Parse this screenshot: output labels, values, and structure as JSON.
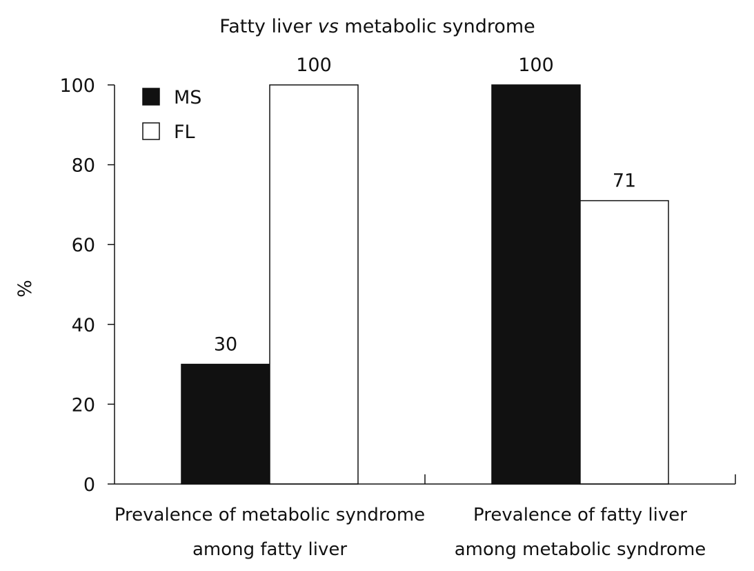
{
  "chart_data": {
    "type": "bar",
    "title_parts": [
      "Fatty liver ",
      "vs",
      " metabolic syndrome"
    ],
    "ylabel": "%",
    "xlabel": "",
    "ylim": [
      0,
      100
    ],
    "yticks": [
      0,
      20,
      40,
      60,
      80,
      100
    ],
    "grid": false,
    "legend_position": "top-left",
    "categories": [
      [
        "Prevalence of metabolic syndrome",
        "among fatty liver"
      ],
      [
        "Prevalence of fatty liver",
        "among metabolic syndrome"
      ]
    ],
    "series": [
      {
        "name": "MS",
        "values": [
          30,
          100
        ],
        "data_labels": [
          "30",
          "100"
        ],
        "color": "#111111"
      },
      {
        "name": "FL",
        "values": [
          100,
          71
        ],
        "data_labels": [
          "100",
          "71"
        ],
        "color": "#ffffff"
      }
    ]
  }
}
